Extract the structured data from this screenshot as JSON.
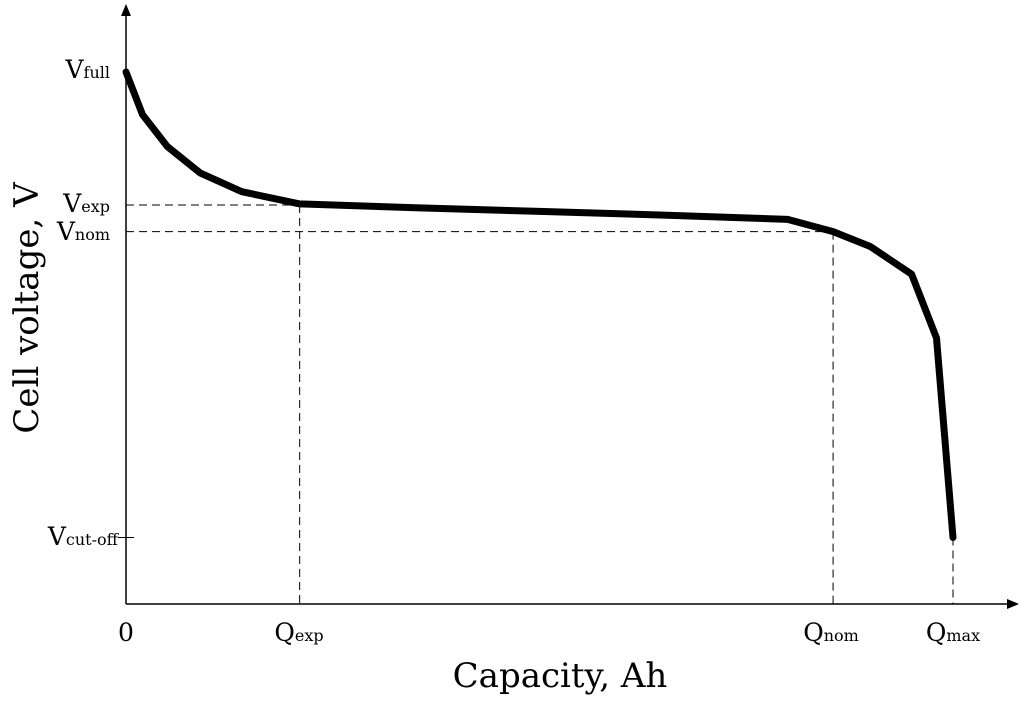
{
  "chart_data": {
    "type": "line",
    "xlabel": "Capacity, Ah",
    "ylabel": "Cell voltage, V",
    "x_ticks": [
      {
        "main": "0",
        "sub": ""
      },
      {
        "main": "Q",
        "sub": "exp"
      },
      {
        "main": "Q",
        "sub": "nom"
      },
      {
        "main": "Q",
        "sub": "max"
      }
    ],
    "y_ticks": [
      {
        "main": "V",
        "sub": "full"
      },
      {
        "main": "V",
        "sub": "exp"
      },
      {
        "main": "V",
        "sub": "nom"
      },
      {
        "main": "V",
        "sub": "cut-off"
      }
    ],
    "levels": {
      "q_exp": 0.21,
      "q_nom": 0.855,
      "q_max": 1.0,
      "v_full": 1.0,
      "v_exp": 0.75,
      "v_nom": 0.7,
      "v_cutoff": 0.125
    },
    "series": [
      {
        "values": [
          [
            0.0,
            1.0
          ],
          [
            0.02,
            0.92
          ],
          [
            0.05,
            0.86
          ],
          [
            0.09,
            0.81
          ],
          [
            0.14,
            0.775
          ],
          [
            0.21,
            0.752
          ],
          [
            0.35,
            0.745
          ],
          [
            0.5,
            0.738
          ],
          [
            0.65,
            0.731
          ],
          [
            0.8,
            0.723
          ],
          [
            0.855,
            0.7
          ],
          [
            0.9,
            0.672
          ],
          [
            0.95,
            0.62
          ],
          [
            0.98,
            0.5
          ],
          [
            1.0,
            0.125
          ]
        ]
      }
    ],
    "grid": false,
    "legend": "none"
  }
}
